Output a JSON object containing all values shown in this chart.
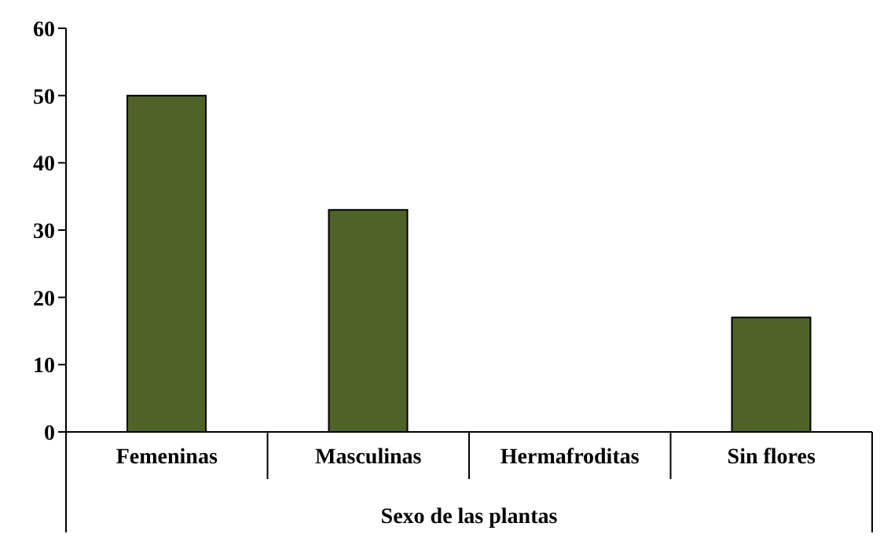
{
  "chart_data": {
    "type": "bar",
    "xlabel": "Sexo de las plantas",
    "categories": [
      "Femeninas",
      "Masculinas",
      "Hermafroditas",
      "Sin flores"
    ],
    "values": [
      50,
      33,
      0,
      17
    ],
    "color": "#4f6228",
    "ylim": [
      0,
      60
    ],
    "yticks": [
      0,
      10,
      20,
      30,
      40,
      50,
      60
    ],
    "grid": false,
    "legend": false
  }
}
